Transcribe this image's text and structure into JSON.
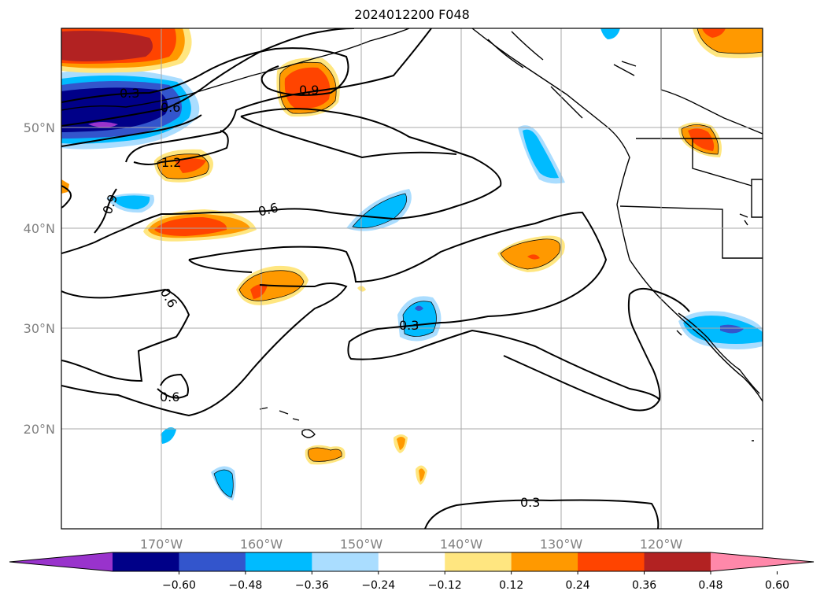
{
  "title": "2024012200 F048",
  "map": {
    "lat_labels": [
      "50°N",
      "40°N",
      "30°N",
      "20°N"
    ],
    "lon_labels": [
      "170°W",
      "160°W",
      "150°W",
      "140°W",
      "130°W",
      "120°W"
    ],
    "contour_labels": [
      "0.3",
      "0.6",
      "1.2",
      "0.9",
      "0.9",
      "0.6",
      "0.6",
      "0.3",
      "0.6",
      "0.3"
    ]
  },
  "colorbar": {
    "ticks": [
      "−0.60",
      "−0.48",
      "−0.36",
      "−0.24",
      "−0.12",
      "0.12",
      "0.24",
      "0.36",
      "0.48",
      "0.60"
    ],
    "colors": [
      "#9933cc",
      "#000088",
      "#3355cc",
      "#00bbff",
      "#aaddff",
      "#ffffff",
      "#ffe680",
      "#ff9900",
      "#ff4400",
      "#b22222",
      "#ff88aa"
    ]
  }
}
